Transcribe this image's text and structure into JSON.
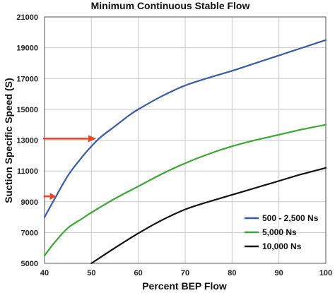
{
  "chart_data": {
    "type": "line",
    "title": "Minimum Continuous Stable Flow",
    "xlabel": "Percent BEP Flow",
    "ylabel": "Suction Specific Speed (S)",
    "xlim": [
      40,
      100
    ],
    "ylim": [
      5000,
      21000
    ],
    "x_ticks": [
      "40",
      "50",
      "60",
      "70",
      "80",
      "90",
      "100"
    ],
    "y_ticks": [
      "5000",
      "7000",
      "9000",
      "11000",
      "13000",
      "15000",
      "17000",
      "19000",
      "21000"
    ],
    "grid": true,
    "legend_position": "bottom-right",
    "series": [
      {
        "name": "500 - 2,500 Ns",
        "color": "#3a5ba8",
        "points": [
          [
            40,
            8000
          ],
          [
            42,
            9100
          ],
          [
            45,
            10700
          ],
          [
            48,
            11900
          ],
          [
            50,
            12600
          ],
          [
            52,
            13200
          ],
          [
            55,
            13900
          ],
          [
            58,
            14600
          ],
          [
            60,
            15000
          ],
          [
            65,
            15850
          ],
          [
            70,
            16550
          ],
          [
            75,
            17050
          ],
          [
            80,
            17500
          ],
          [
            85,
            18000
          ],
          [
            90,
            18500
          ],
          [
            95,
            19000
          ],
          [
            100,
            19500
          ]
        ]
      },
      {
        "name": "5,000 Ns",
        "color": "#3ea636",
        "points": [
          [
            40,
            5500
          ],
          [
            42,
            6300
          ],
          [
            45,
            7300
          ],
          [
            48,
            7900
          ],
          [
            50,
            8300
          ],
          [
            55,
            9200
          ],
          [
            60,
            10000
          ],
          [
            65,
            10800
          ],
          [
            70,
            11500
          ],
          [
            75,
            12100
          ],
          [
            80,
            12600
          ],
          [
            85,
            13000
          ],
          [
            90,
            13350
          ],
          [
            95,
            13700
          ],
          [
            100,
            14000
          ]
        ]
      },
      {
        "name": "10,000 Ns",
        "color": "#111111",
        "points": [
          [
            50,
            5000
          ],
          [
            55,
            6000
          ],
          [
            60,
            6950
          ],
          [
            65,
            7800
          ],
          [
            70,
            8500
          ],
          [
            75,
            9000
          ],
          [
            80,
            9450
          ],
          [
            85,
            9900
          ],
          [
            90,
            10350
          ],
          [
            95,
            10800
          ],
          [
            100,
            11200
          ]
        ]
      }
    ],
    "annotations": [
      {
        "type": "arrow",
        "color": "#e8472a",
        "points_to": [
          51,
          13100
        ]
      },
      {
        "type": "arrow",
        "color": "#e8472a",
        "points_to": [
          42.5,
          9350
        ]
      }
    ]
  }
}
